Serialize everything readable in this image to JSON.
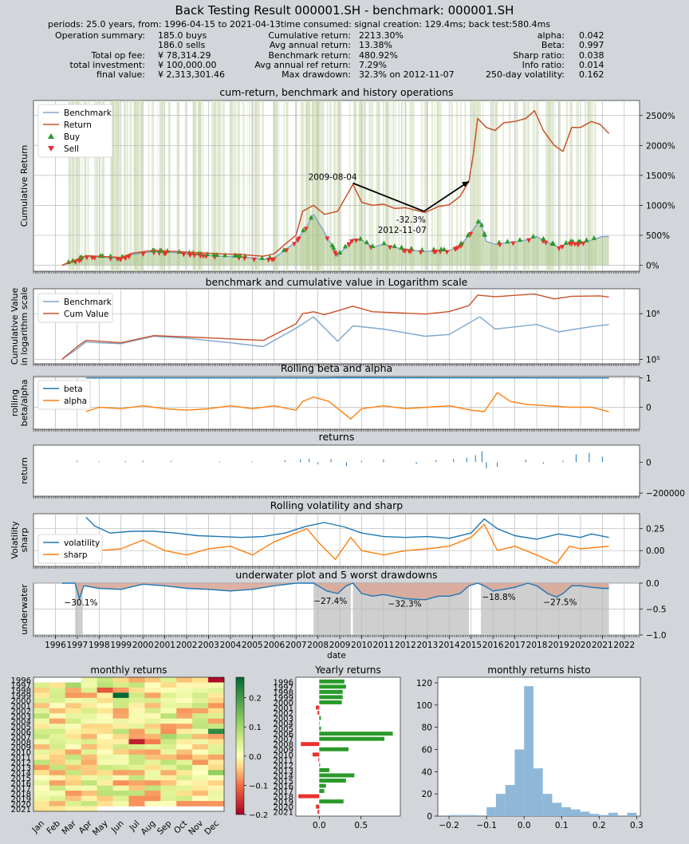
{
  "header": {
    "title": "Back Testing Result 000001.SH - benchmark: 000001.SH",
    "periods_line": "periods: 25.0 years, from: 1996-04-15 to 2021-04-13time consumed:   signal creation: 129.4ms;  back test:580.4ms"
  },
  "summary": {
    "col1": [
      {
        "label": "Operation summary:",
        "value": "185.0     buys"
      },
      {
        "label": "",
        "value": "186.0     sells"
      },
      {
        "label": "Total op fee:",
        "value": "¥    78,314.29"
      },
      {
        "label": "total investment:",
        "value": "¥   100,000.00"
      },
      {
        "label": "final value:",
        "value": "¥ 2,313,301.46"
      }
    ],
    "col2": [
      {
        "label": "Cumulative return:",
        "value": "2213.30%"
      },
      {
        "label": "Avg annual return:",
        "value": "13.38%"
      },
      {
        "label": "Benchmark return:",
        "value": "480.92%"
      },
      {
        "label": "Avg annual ref return:",
        "value": "7.29%"
      },
      {
        "label": "Max drawdown:",
        "value": "32.3% on 2012-11-07"
      }
    ],
    "col3": [
      {
        "label": "alpha:",
        "value": "0.042"
      },
      {
        "label": "Beta:",
        "value": "0.997"
      },
      {
        "label": "Sharp ratio:",
        "value": "0.038"
      },
      {
        "label": "Info ratio:",
        "value": "0.014"
      },
      {
        "label": "250-day volatility:",
        "value": "0.162"
      }
    ]
  },
  "colors": {
    "benchmark": "#7ea6cc",
    "return": "#c9522a",
    "buy": "#2a9a2a",
    "sell": "#e8322e",
    "beta": "#1f77b4",
    "alpha": "#ff7f0e",
    "ops_bg": "#cfdcb8",
    "underwater_fill": "#d8a89a",
    "drawdown_span": "#cfcfcf",
    "yearly_pos": "#2a9a2a",
    "yearly_neg": "#e8322e",
    "histo": "#8fb8d8"
  },
  "chart_data": [
    {
      "type": "line",
      "title": "cum-return, benchmark and history operations",
      "ylabel": "Cumulative Return",
      "legend": [
        "Benchmark",
        "Return",
        "Buy",
        "Sell"
      ],
      "legend_position": "top-left",
      "yticks": [
        "0%",
        "500%",
        "1000%",
        "1500%",
        "2000%",
        "2500%"
      ],
      "ylim": [
        -100,
        2750
      ],
      "xlim": [
        1995.0,
        2022.7
      ],
      "annotations": [
        {
          "text": "2009-08-04",
          "x": 2009.6,
          "y": 1370
        },
        {
          "text": "-32.3%",
          "x": 2012.85,
          "y": 900
        },
        {
          "text": "2012-11-07",
          "x": 2012.85,
          "y": 900
        }
      ],
      "series": [
        {
          "name": "Benchmark",
          "x": [
            1996.3,
            1997.0,
            1997.4,
            1998.0,
            1999.0,
            1999.5,
            2000.5,
            2001.5,
            2002.5,
            2003.5,
            2004.5,
            2005.5,
            2006.0,
            2006.5,
            2007.0,
            2007.5,
            2007.8,
            2008.3,
            2008.9,
            2009.6,
            2010.0,
            2010.5,
            2011.0,
            2011.5,
            2012.0,
            2012.9,
            2013.5,
            2014.0,
            2014.5,
            2014.9,
            2015.4,
            2015.7,
            2016.1,
            2016.5,
            2017.0,
            2017.5,
            2018.0,
            2018.5,
            2019.0,
            2019.5,
            2020.0,
            2020.5,
            2021.0,
            2021.3
          ],
          "y": [
            0,
            80,
            150,
            140,
            120,
            180,
            230,
            210,
            180,
            150,
            140,
            100,
            120,
            250,
            400,
            650,
            850,
            550,
            150,
            440,
            420,
            300,
            350,
            300,
            260,
            230,
            250,
            240,
            330,
            500,
            750,
            400,
            350,
            370,
            390,
            420,
            480,
            380,
            300,
            380,
            370,
            420,
            480,
            480
          ]
        },
        {
          "name": "Return",
          "x": [
            1996.3,
            1997.0,
            1997.4,
            1998.0,
            1999.0,
            1999.5,
            2000.5,
            2001.5,
            2002.5,
            2003.5,
            2004.5,
            2005.5,
            2006.0,
            2006.5,
            2007.0,
            2007.3,
            2007.8,
            2008.3,
            2008.9,
            2009.6,
            2010.0,
            2010.5,
            2011.0,
            2011.5,
            2012.0,
            2012.9,
            2013.5,
            2014.0,
            2014.5,
            2014.9,
            2015.1,
            2015.3,
            2015.7,
            2016.1,
            2016.5,
            2017.0,
            2017.5,
            2017.9,
            2018.3,
            2018.8,
            2019.2,
            2019.6,
            2020.0,
            2020.5,
            2020.9,
            2021.3
          ],
          "y": [
            0,
            100,
            160,
            150,
            130,
            200,
            250,
            230,
            210,
            190,
            180,
            150,
            190,
            350,
            500,
            900,
            1000,
            850,
            900,
            1350,
            1050,
            1000,
            1020,
            950,
            960,
            880,
            980,
            1010,
            1150,
            1400,
            1850,
            2450,
            2300,
            2250,
            2380,
            2400,
            2450,
            2580,
            2250,
            2000,
            1900,
            2300,
            2300,
            2400,
            2350,
            2200
          ]
        }
      ]
    },
    {
      "type": "line",
      "title": "benchmark and cumulative value in Logarithm scale",
      "ylabel": "Cumulative Value in logarithm scale",
      "yscale": "log",
      "legend": [
        "Benchmark",
        "Cum Value"
      ],
      "legend_position": "top-left",
      "yticks": [
        "10⁵",
        "10⁶"
      ],
      "ylim": [
        80000,
        3500000
      ],
      "series": [
        {
          "name": "Benchmark",
          "x": [
            1996.3,
            1997.0,
            1997.4,
            1998.0,
            1999.0,
            2000.5,
            2002.0,
            2004.0,
            2005.5,
            2007.0,
            2007.8,
            2008.9,
            2009.6,
            2011.0,
            2012.9,
            2014.0,
            2015.4,
            2016.1,
            2018.0,
            2019.0,
            2020.5,
            2021.3
          ],
          "y": [
            100000,
            170000,
            240000,
            230000,
            220000,
            320000,
            290000,
            230000,
            190000,
            480000,
            850000,
            250000,
            540000,
            460000,
            320000,
            350000,
            850000,
            460000,
            580000,
            400000,
            520000,
            580000
          ]
        },
        {
          "name": "Cum Value",
          "x": [
            1996.3,
            1997.0,
            1997.4,
            1998.0,
            1999.0,
            2000.5,
            2002.0,
            2004.0,
            2005.5,
            2007.0,
            2007.3,
            2007.8,
            2008.3,
            2009.6,
            2010.5,
            2012.9,
            2014.0,
            2014.9,
            2015.3,
            2016.1,
            2017.9,
            2018.8,
            2019.6,
            2020.9,
            2021.3
          ],
          "y": [
            100000,
            190000,
            260000,
            250000,
            230000,
            330000,
            310000,
            280000,
            260000,
            600000,
            1000000,
            1100000,
            950000,
            1450000,
            1100000,
            980000,
            1110000,
            1500000,
            2550000,
            2350000,
            2680000,
            2100000,
            2400000,
            2450000,
            2300000
          ]
        }
      ]
    },
    {
      "type": "line",
      "title": "Rolling beta and alpha",
      "ylabel": "rolling beta/alpha",
      "legend": [
        "beta",
        "alpha"
      ],
      "legend_position": "top-left",
      "yticks": [
        "0",
        "1"
      ],
      "ylim": [
        -0.75,
        1.05
      ],
      "series": [
        {
          "name": "beta",
          "x": [
            1997.4,
            2008.0,
            2009.0,
            2021.3
          ],
          "y": [
            1.0,
            1.0,
            1.01,
            1.0
          ]
        },
        {
          "name": "alpha",
          "x": [
            1997.4,
            1998.0,
            1999.0,
            2000.0,
            2001.0,
            2002.0,
            2003.0,
            2004.0,
            2005.0,
            2006.0,
            2007.0,
            2007.3,
            2007.8,
            2008.5,
            2009.0,
            2009.5,
            2010.0,
            2011.0,
            2012.0,
            2013.0,
            2014.0,
            2015.0,
            2015.6,
            2016.2,
            2016.8,
            2017.5,
            2018.5,
            2019.5,
            2020.5,
            2021.3
          ],
          "y": [
            -0.15,
            0.0,
            -0.05,
            0.05,
            -0.05,
            -0.1,
            -0.05,
            0.05,
            -0.05,
            0.05,
            -0.1,
            0.2,
            0.35,
            0.2,
            -0.1,
            -0.4,
            -0.05,
            0.05,
            -0.05,
            0.0,
            0.05,
            -0.1,
            -0.15,
            0.5,
            0.2,
            0.1,
            0.05,
            0.0,
            0.0,
            -0.15
          ]
        }
      ]
    },
    {
      "type": "bar",
      "title": "returns",
      "ylabel": "return",
      "yticks": [
        "−200000",
        "0"
      ],
      "ylim": [
        -220000,
        110000
      ],
      "x": [
        1997.0,
        1998.0,
        1999.2,
        2000.0,
        2001.3,
        2003.5,
        2005.0,
        2006.5,
        2007.2,
        2007.6,
        2008.0,
        2008.6,
        2009.3,
        2010.0,
        2011.0,
        2012.5,
        2013.4,
        2014.2,
        2014.8,
        2015.2,
        2015.5,
        2015.7,
        2016.2,
        2017.5,
        2018.3,
        2019.2,
        2019.8,
        2020.4,
        2021.0
      ],
      "values": [
        9000,
        5000,
        7000,
        10000,
        8000,
        6000,
        5000,
        12000,
        18000,
        22000,
        -15000,
        20000,
        -25000,
        10000,
        18000,
        -12000,
        12000,
        20000,
        30000,
        45000,
        70000,
        -40000,
        -30000,
        15000,
        -10000,
        10000,
        50000,
        60000,
        35000
      ]
    },
    {
      "type": "line",
      "title": "Rolling volatility and sharp",
      "ylabel": "Volatility sharp",
      "legend": [
        "volatility",
        "sharp"
      ],
      "legend_position": "bottom-left",
      "yticks": [
        "0.00",
        "0.25"
      ],
      "ylim": [
        -0.18,
        0.42
      ],
      "series": [
        {
          "name": "volatility",
          "x": [
            1997.4,
            1997.8,
            1998.5,
            1999.5,
            2000.5,
            2001.5,
            2002.5,
            2003.5,
            2004.5,
            2005.5,
            2006.5,
            2007.5,
            2008.3,
            2009.2,
            2010.0,
            2011.0,
            2012.0,
            2013.0,
            2014.0,
            2015.0,
            2015.6,
            2016.2,
            2017.0,
            2018.0,
            2019.0,
            2020.0,
            2020.5,
            2021.3
          ],
          "y": [
            0.38,
            0.28,
            0.2,
            0.22,
            0.22,
            0.2,
            0.17,
            0.16,
            0.15,
            0.16,
            0.2,
            0.28,
            0.32,
            0.27,
            0.2,
            0.16,
            0.15,
            0.16,
            0.14,
            0.2,
            0.36,
            0.25,
            0.17,
            0.13,
            0.19,
            0.15,
            0.19,
            0.15
          ]
        },
        {
          "name": "sharp",
          "x": [
            1997.4,
            1998.0,
            1999.0,
            2000.0,
            2001.0,
            2002.0,
            2003.0,
            2004.0,
            2005.0,
            2006.0,
            2007.0,
            2007.5,
            2008.0,
            2008.8,
            2009.5,
            2010.0,
            2011.0,
            2012.0,
            2013.0,
            2014.0,
            2015.0,
            2015.6,
            2016.2,
            2017.0,
            2018.0,
            2018.9,
            2019.5,
            2020.0,
            2021.3
          ],
          "y": [
            0.05,
            0.0,
            0.02,
            0.12,
            0.0,
            -0.05,
            0.02,
            0.05,
            -0.05,
            0.1,
            0.2,
            0.25,
            0.1,
            -0.1,
            0.15,
            0.0,
            -0.05,
            0.0,
            0.02,
            0.05,
            0.15,
            0.3,
            0.0,
            0.05,
            -0.05,
            -0.15,
            0.05,
            0.02,
            0.05
          ]
        }
      ]
    },
    {
      "type": "area",
      "title": "underwater plot and 5 worst drawdowns",
      "ylabel": "underwater",
      "xlabel": "date",
      "yticks": [
        "−1.0",
        "−0.5",
        "0.0"
      ],
      "ylim": [
        -1.0,
        0.0
      ],
      "xticks": [
        "1996",
        "1997",
        "1998",
        "1999",
        "2000",
        "2001",
        "2002",
        "2003",
        "2004",
        "2005",
        "2006",
        "2007",
        "2008",
        "2009",
        "2010",
        "2011",
        "2012",
        "2013",
        "2014",
        "2015",
        "2016",
        "2017",
        "2018",
        "2019",
        "2020",
        "2021",
        "2022"
      ],
      "drawdown_labels": [
        "−30.1%",
        "−27.4%",
        "−32.3%",
        "−18.8%",
        "−27.5%"
      ],
      "drawdown_spans": [
        [
          1996.9,
          1997.25
        ],
        [
          2007.8,
          2009.5
        ],
        [
          2009.6,
          2014.9
        ],
        [
          2015.45,
          2021.3
        ]
      ],
      "x": [
        1996.3,
        1996.9,
        1997.1,
        1997.3,
        1998.0,
        1999.0,
        2000.0,
        2001.0,
        2002.0,
        2003.0,
        2004.0,
        2005.0,
        2006.0,
        2007.0,
        2007.8,
        2008.4,
        2008.9,
        2009.3,
        2009.6,
        2010.0,
        2010.5,
        2011.0,
        2012.0,
        2012.9,
        2013.5,
        2014.0,
        2014.5,
        2014.9,
        2015.3,
        2015.6,
        2016.0,
        2016.5,
        2017.0,
        2017.6,
        2018.0,
        2018.5,
        2018.9,
        2019.2,
        2019.6,
        2020.0,
        2020.5,
        2021.0,
        2021.3
      ],
      "values": [
        0,
        0,
        -0.3,
        -0.05,
        -0.1,
        -0.12,
        -0.02,
        -0.05,
        -0.1,
        -0.12,
        -0.15,
        -0.12,
        -0.05,
        0,
        0,
        -0.15,
        -0.2,
        -0.05,
        0,
        -0.2,
        -0.25,
        -0.22,
        -0.3,
        -0.32,
        -0.25,
        -0.25,
        -0.2,
        -0.05,
        0,
        -0.05,
        -0.15,
        -0.12,
        -0.08,
        0,
        -0.05,
        -0.2,
        -0.27,
        -0.2,
        -0.05,
        -0.05,
        -0.08,
        -0.1,
        -0.1
      ]
    },
    {
      "type": "heatmap",
      "title": "monthly returns",
      "rows": [
        "1996",
        "1997",
        "1998",
        "1999",
        "2000",
        "2001",
        "2002",
        "2003",
        "2004",
        "2005",
        "2006",
        "2007",
        "2008",
        "2009",
        "2010",
        "2011",
        "2012",
        "2013",
        "2014",
        "2015",
        "2016",
        "2017",
        "2018",
        "2019",
        "2020",
        "2021"
      ],
      "columns": [
        "Jan",
        "Feb",
        "Mar",
        "Apr",
        "May",
        "Jun",
        "Jul",
        "Aug",
        "Sep",
        "Oct",
        "Nov",
        "Dec"
      ],
      "colorbar_ticks": [
        "−0.2",
        "−0.1",
        "0.0",
        "0.1",
        "0.2"
      ],
      "colorbar_range": [
        -0.2,
        0.27
      ]
    },
    {
      "type": "bar",
      "title": "Yearly returns",
      "orientation": "horizontal",
      "categories": [
        "1996",
        "1997",
        "1998",
        "1999",
        "2000",
        "2001",
        "2002",
        "2003",
        "2004",
        "2005",
        "2006",
        "2007",
        "2008",
        "2009",
        "2010",
        "2011",
        "2012",
        "2013",
        "2014",
        "2015",
        "2016",
        "2017",
        "2018",
        "2019",
        "2020",
        "2021"
      ],
      "values": [
        0.3,
        0.32,
        0.28,
        0.28,
        0.27,
        -0.04,
        -0.02,
        0.02,
        0.0,
        0.02,
        0.88,
        0.78,
        -0.22,
        0.35,
        -0.08,
        -0.01,
        0.01,
        0.12,
        0.42,
        0.32,
        0.08,
        0.06,
        -0.25,
        0.29,
        -0.04,
        -0.02
      ],
      "xticks": [
        "0.0",
        "0.5"
      ],
      "xlim": [
        -0.28,
        0.97
      ]
    },
    {
      "type": "bar",
      "title": "monthly returns histo",
      "xticks": [
        "−0.2",
        "−0.1",
        "0.0",
        "0.1",
        "0.2",
        "0.3"
      ],
      "yticks": [
        "0",
        "20",
        "40",
        "60",
        "80",
        "100",
        "120"
      ],
      "xlim": [
        -0.23,
        0.31
      ],
      "ylim": [
        0,
        125
      ],
      "bin_edges": [
        -0.2,
        -0.175,
        -0.15,
        -0.125,
        -0.1,
        -0.075,
        -0.05,
        -0.025,
        0.0,
        0.025,
        0.05,
        0.075,
        0.1,
        0.125,
        0.15,
        0.175,
        0.2,
        0.225,
        0.25,
        0.275,
        0.3
      ],
      "values": [
        1,
        1,
        1,
        0,
        8,
        20,
        28,
        60,
        117,
        43,
        20,
        12,
        8,
        6,
        4,
        2,
        1,
        3,
        0,
        3
      ]
    }
  ]
}
